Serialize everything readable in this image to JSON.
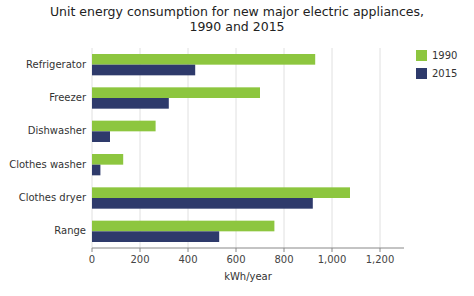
{
  "chart_data": {
    "type": "bar",
    "orientation": "horizontal",
    "title": "Unit energy consumption for new major electric appliances,\n1990 and 2015",
    "categories": [
      "Refrigerator",
      "Freezer",
      "Dishwasher",
      "Clothes washer",
      "Clothes dryer",
      "Range"
    ],
    "series": [
      {
        "name": "1990",
        "color": "#8dc63f",
        "values": [
          930,
          700,
          265,
          130,
          1075,
          760
        ]
      },
      {
        "name": "2015",
        "color": "#2e3a6b",
        "values": [
          430,
          320,
          75,
          35,
          920,
          530
        ]
      }
    ],
    "xlabel": "kWh/year",
    "xlim": [
      0,
      1300
    ],
    "xticks": [
      0,
      200,
      400,
      600,
      800,
      {
        "value": 1000,
        "label": "1,000"
      },
      {
        "value": 1200,
        "label": "1,200"
      }
    ],
    "grid": true,
    "legend": "upper right"
  }
}
